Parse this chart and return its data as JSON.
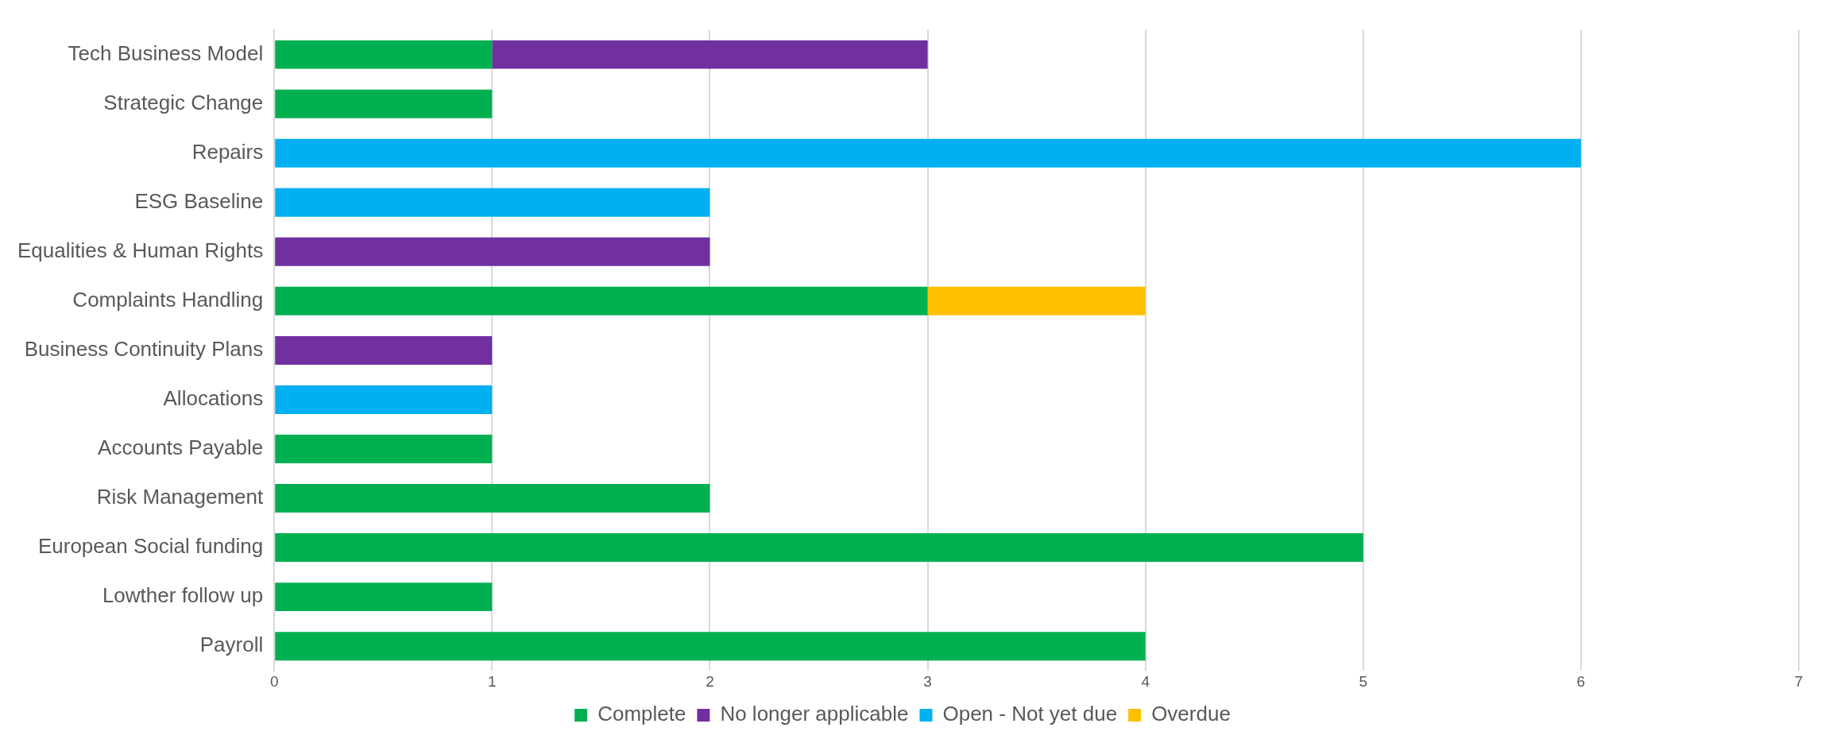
{
  "chart_data": {
    "type": "bar",
    "orientation": "horizontal",
    "stacked": true,
    "categories": [
      "Tech Business Model",
      "Strategic Change",
      "Repairs",
      "ESG Baseline",
      "Equalities & Human Rights",
      "Complaints Handling",
      "Business Continuity Plans",
      "Allocations",
      "Accounts Payable",
      "Risk Management",
      "European Social funding",
      "Lowther follow up",
      "Payroll"
    ],
    "series": [
      {
        "name": "Complete",
        "color": "#00b050",
        "values": [
          1,
          1,
          null,
          null,
          null,
          3,
          null,
          null,
          1,
          2,
          5,
          1,
          4
        ]
      },
      {
        "name": "No longer applicable",
        "color": "#7030a0",
        "values": [
          2,
          null,
          null,
          null,
          2,
          null,
          1,
          null,
          null,
          null,
          null,
          null,
          null
        ]
      },
      {
        "name": "Open - Not yet due",
        "color": "#00b0f0",
        "values": [
          null,
          null,
          6,
          2,
          null,
          null,
          null,
          1,
          null,
          null,
          null,
          null,
          null
        ]
      },
      {
        "name": "Overdue",
        "color": "#ffc000",
        "values": [
          null,
          null,
          null,
          null,
          null,
          1,
          null,
          null,
          null,
          null,
          null,
          null,
          null
        ]
      }
    ],
    "xlim": [
      0,
      7
    ],
    "xticks": [
      0,
      1,
      2,
      3,
      4,
      5,
      6,
      7
    ],
    "grid": "x",
    "legend": "bottom"
  }
}
